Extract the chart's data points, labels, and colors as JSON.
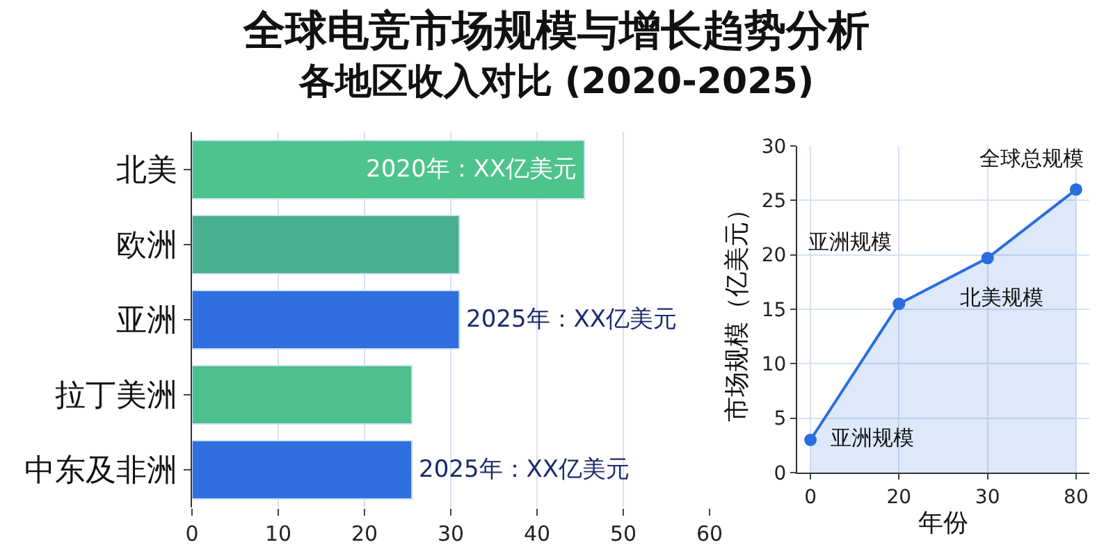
{
  "chart_data": [
    {
      "type": "bar",
      "orientation": "horizontal",
      "title": "全球电竞市场规模与增长趋势分析",
      "subtitle": "各地区收入对比 (2020-2025)",
      "categories": [
        "北美",
        "欧洲",
        "亚洲",
        "拉丁美洲",
        "中东及非洲"
      ],
      "values": [
        45.5,
        31,
        31,
        25.5,
        25.5
      ],
      "colors": [
        "#4cc48c",
        "#48b090",
        "#2f6fe0",
        "#4cc08c",
        "#2f6fe0"
      ],
      "annotations": [
        {
          "text": "2020年：XX亿美元",
          "x": 45.5,
          "y": "北美"
        },
        {
          "text": "2025年：XX亿美元",
          "x": 31,
          "y": "亚洲"
        },
        {
          "text": "2025年：XX亿美元",
          "x": 25.5,
          "y": "中东及非洲"
        }
      ],
      "xlim": [
        0,
        60
      ],
      "xticks": [
        0,
        10,
        20,
        30,
        40,
        50,
        60
      ],
      "grid": "x"
    },
    {
      "type": "area",
      "xlabel": "年份",
      "ylabel": "市场规模（亿美元）",
      "categories": [
        "0",
        "20",
        "30",
        "80"
      ],
      "series": [
        {
          "color": "#2a6de0",
          "values": [
            3,
            15.5,
            19.7,
            26
          ]
        }
      ],
      "ylim": [
        0,
        30
      ],
      "yticks": [
        0,
        5,
        10,
        15,
        20,
        25,
        30
      ],
      "grid": true,
      "marker": "circle",
      "annotations": [
        {
          "text": "亚洲规模",
          "x": "0",
          "y": 3
        },
        {
          "text": "亚洲规模",
          "x": "20",
          "y": 15.5
        },
        {
          "text": "北美规模",
          "x": "30",
          "y": 19.7
        },
        {
          "text": "全球总规模",
          "x": "80",
          "y": 26
        }
      ]
    }
  ]
}
